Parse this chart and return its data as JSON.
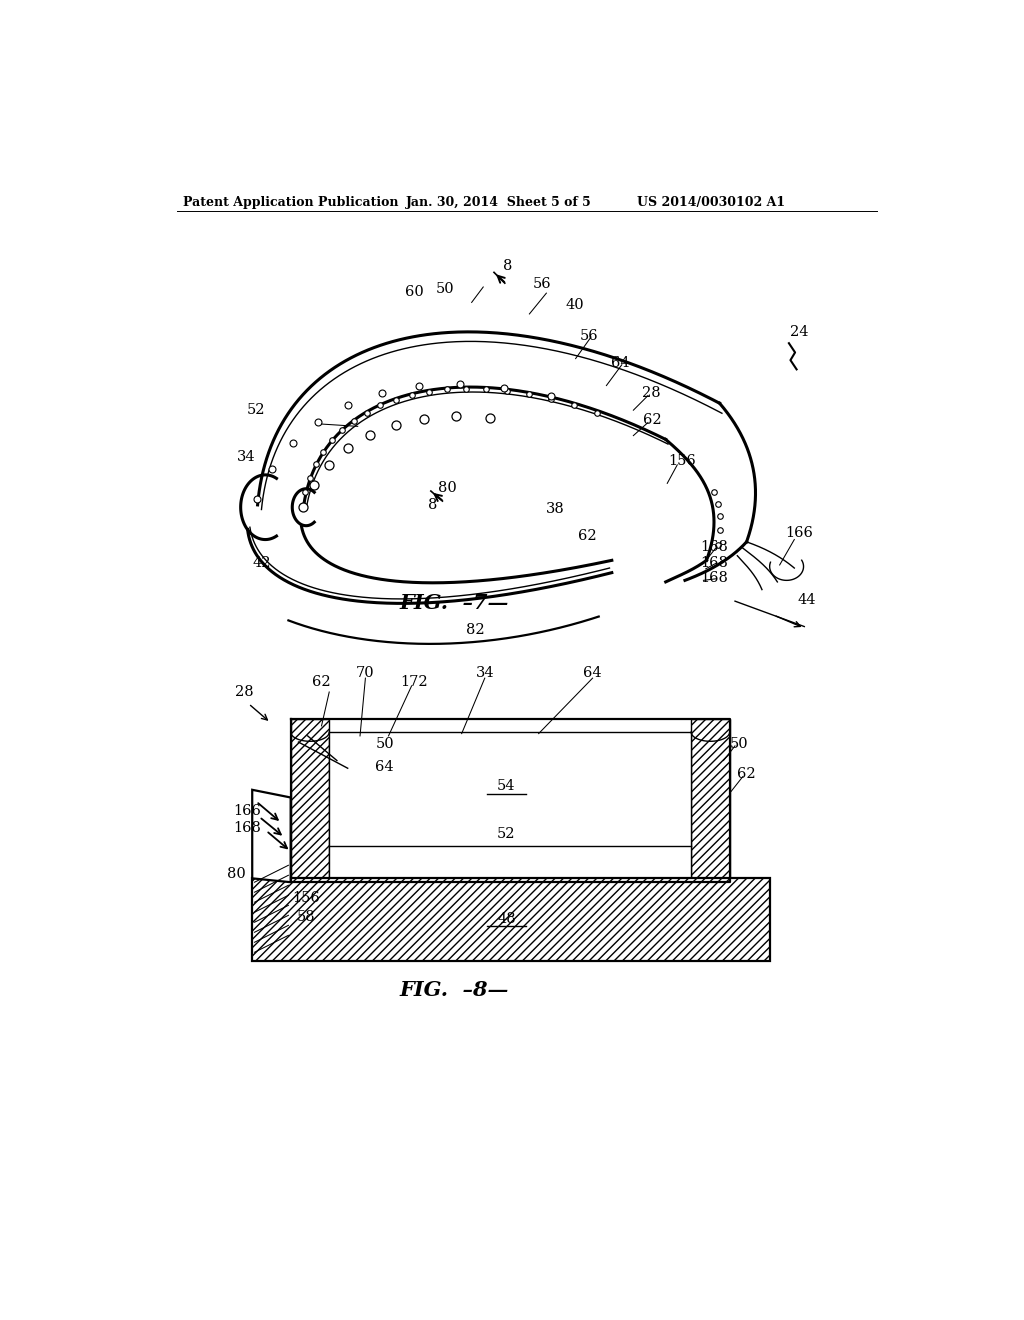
{
  "bg_color": "#ffffff",
  "header_left": "Patent Application Publication",
  "header_mid": "Jan. 30, 2014  Sheet 5 of 5",
  "header_right": "US 2014/0030102 A1",
  "fig7_caption": "FIG.  -7-",
  "fig8_caption": "FIG.  -8-"
}
